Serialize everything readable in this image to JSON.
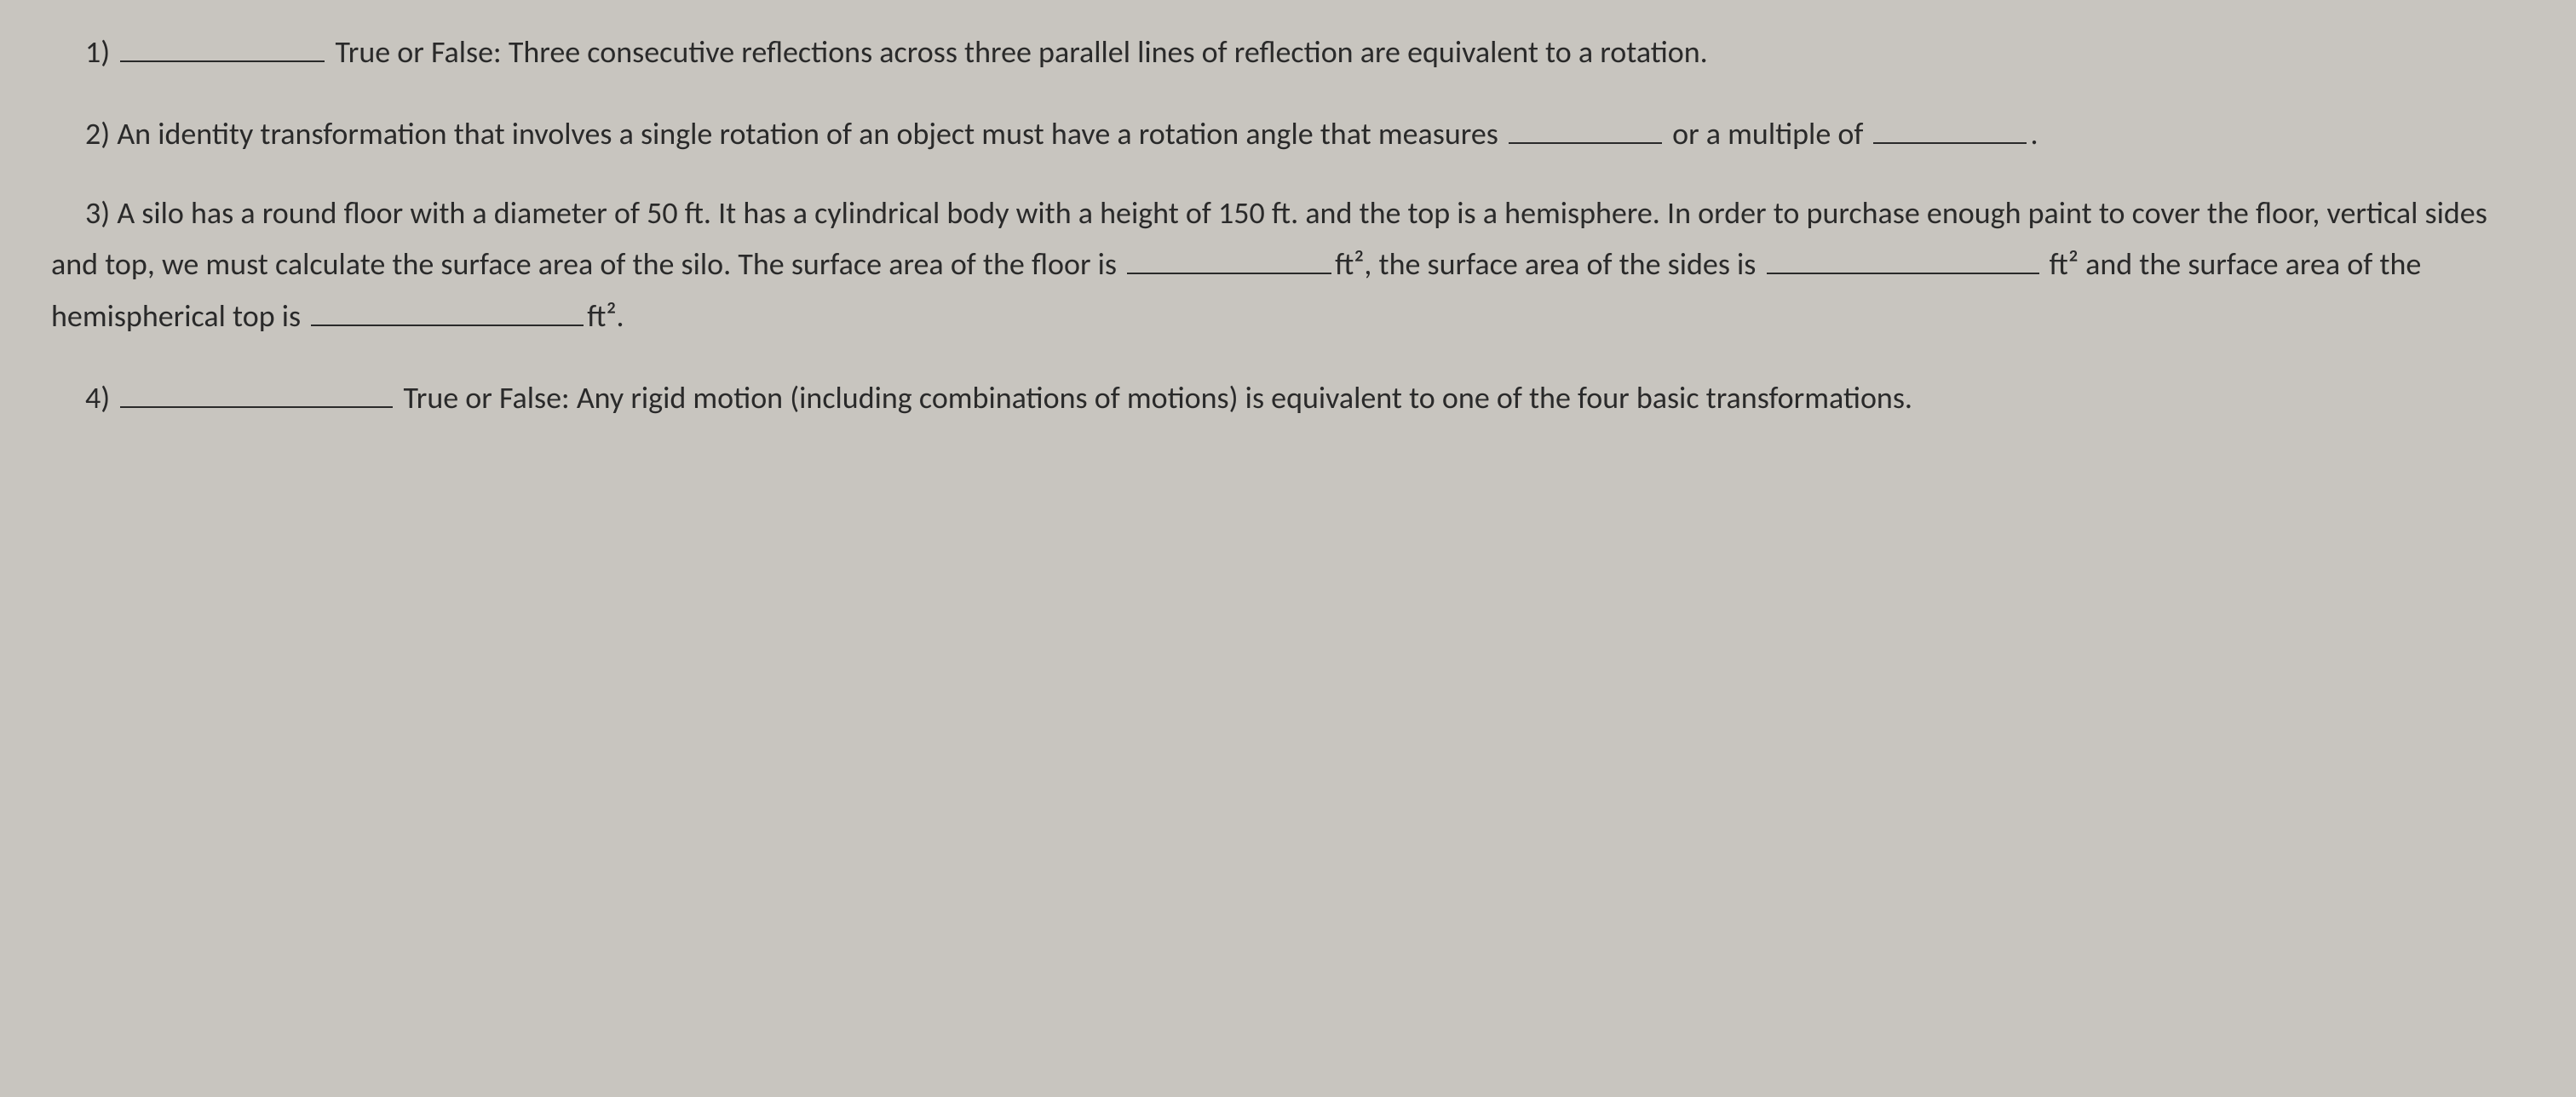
{
  "questions": {
    "q1": {
      "number": "1)",
      "prefix": "True or False:",
      "text": "Three consecutive reflections across three parallel lines of reflection are equivalent to a rotation."
    },
    "q2": {
      "number": "2)",
      "text_part1": "An identity transformation that involves a single rotation of an object must have a rotation angle that measures",
      "text_part2": "or a  multiple of",
      "text_part3": "."
    },
    "q3": {
      "number": "3)",
      "text_part1": "A silo has a round floor with a diameter of 50 ft. It has a cylindrical body with a height of 150 ft. and the top is a hemisphere.  In order to purchase enough paint to cover the floor, vertical sides and top, we must calculate the surface area of the silo.  The surface area of the floor is",
      "unit1": "ft²,",
      "text_part2": "the surface area of the sides is",
      "unit2": "ft²",
      "text_part3": "and the surface area of the hemispherical top is",
      "unit3": "ft²."
    },
    "q4": {
      "number": "4)",
      "prefix": "True or False:",
      "text": "Any rigid motion (including combinations of motions) is equivalent to one of the four basic transformations."
    }
  },
  "styling": {
    "background_color": "#c8c5bf",
    "text_color": "#2a2a2a",
    "font_family": "Calibri",
    "font_size": 36,
    "line_height": 1.6
  }
}
